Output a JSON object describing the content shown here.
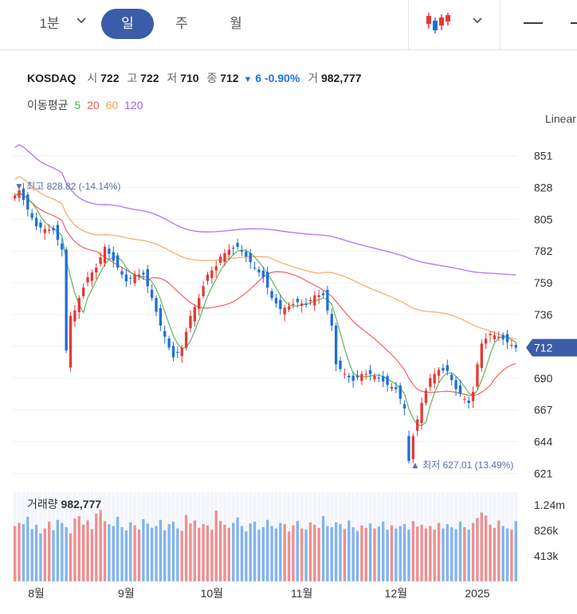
{
  "toolbar": {
    "timeframes": [
      "1분",
      "일",
      "주",
      "월"
    ],
    "active": "일",
    "colors": {
      "active_bg": "#3b5ca8"
    }
  },
  "header": {
    "symbol": "KOSDAQ",
    "open_label": "시",
    "open": "722",
    "high_label": "고",
    "high": "722",
    "low_label": "저",
    "low": "710",
    "close_label": "종",
    "close": "712",
    "change_arrow": "▼",
    "change": "6",
    "change_pct": "-0.90%",
    "volume_label": "거",
    "volume": "982,777"
  },
  "ma_legend": {
    "label": "이동평균",
    "items": [
      {
        "name": "5",
        "color": "#4caf50"
      },
      {
        "name": "20",
        "color": "#ef5350"
      },
      {
        "name": "60",
        "color": "#f5a15c"
      },
      {
        "name": "120",
        "color": "#a259ff"
      }
    ]
  },
  "scale_mode": "Linear",
  "chart_data": {
    "type": "candlestick",
    "ylim": [
      612,
      860
    ],
    "y_ticks": [
      851,
      828,
      805,
      782,
      759,
      736,
      713,
      690,
      667,
      644,
      621
    ],
    "y_tick_labels": [
      "851",
      "828",
      "805",
      "782",
      "759",
      "736",
      "",
      "690",
      "667",
      "644",
      "621"
    ],
    "current_price_label": "712",
    "current_price": 712,
    "x_labels": [
      "8월",
      "9월",
      "10월",
      "11월",
      "12월",
      "2025"
    ],
    "x_label_positions": [
      5,
      26,
      46,
      67,
      89,
      108
    ],
    "n_bars": 118,
    "high_marker": {
      "text": "▼ 최고 828.82 (-14.14%)",
      "value": 828.82,
      "bar_index": 1
    },
    "low_marker": {
      "text": "▲ 최저 627.01 (13.49%)",
      "value": 627.01,
      "bar_index": 92
    },
    "close_anchors": [
      [
        0,
        822
      ],
      [
        1,
        826
      ],
      [
        3,
        812
      ],
      [
        5,
        800
      ],
      [
        7,
        798
      ],
      [
        9,
        797
      ],
      [
        10,
        790
      ],
      [
        11,
        783
      ],
      [
        12,
        695
      ],
      [
        13,
        735
      ],
      [
        14,
        739
      ],
      [
        15,
        748
      ],
      [
        17,
        763
      ],
      [
        19,
        770
      ],
      [
        21,
        785
      ],
      [
        24,
        770
      ],
      [
        26,
        760
      ],
      [
        28,
        765
      ],
      [
        30,
        765
      ],
      [
        32,
        748
      ],
      [
        34,
        728
      ],
      [
        36,
        712
      ],
      [
        37,
        705
      ],
      [
        39,
        712
      ],
      [
        41,
        735
      ],
      [
        43,
        748
      ],
      [
        45,
        765
      ],
      [
        47,
        771
      ],
      [
        48,
        778
      ],
      [
        50,
        783
      ],
      [
        52,
        785
      ],
      [
        54,
        778
      ],
      [
        56,
        770
      ],
      [
        58,
        763
      ],
      [
        60,
        748
      ],
      [
        62,
        740
      ],
      [
        64,
        742
      ],
      [
        66,
        745
      ],
      [
        68,
        743
      ],
      [
        70,
        750
      ],
      [
        72,
        750
      ],
      [
        74,
        728
      ],
      [
        75,
        700
      ],
      [
        77,
        693
      ],
      [
        79,
        688
      ],
      [
        81,
        693
      ],
      [
        83,
        693
      ],
      [
        85,
        690
      ],
      [
        87,
        685
      ],
      [
        89,
        682
      ],
      [
        91,
        668
      ],
      [
        92,
        630
      ],
      [
        93,
        648
      ],
      [
        95,
        672
      ],
      [
        97,
        690
      ],
      [
        99,
        696
      ],
      [
        101,
        695
      ],
      [
        103,
        682
      ],
      [
        105,
        675
      ],
      [
        106,
        672
      ],
      [
        107,
        680
      ],
      [
        108,
        700
      ],
      [
        109,
        715
      ],
      [
        111,
        722
      ],
      [
        113,
        720
      ],
      [
        115,
        716
      ],
      [
        117,
        712
      ]
    ],
    "volume": {
      "label": "거래량",
      "value": "982,777",
      "ylim": [
        0,
        1.45
      ],
      "y_ticks": [
        1.24,
        0.826,
        0.413
      ],
      "y_tick_labels": [
        "1.24m",
        "826k",
        "413k"
      ],
      "levels": [
        0.9,
        0.95,
        0.93,
        1.05,
        0.85,
        0.92,
        0.78,
        0.86,
        0.97,
        0.83,
        1.0,
        0.95,
        0.88,
        0.78,
        1.02,
        1.06,
        0.92,
        0.99,
        0.85,
        1.1,
        1.16,
        0.98,
        0.93,
        0.9,
        1.05,
        0.88,
        0.83,
        0.96,
        0.91,
        0.84,
        1.01,
        0.94,
        0.87,
        0.9,
        1.0,
        0.83,
        0.93,
        0.97,
        0.86,
        0.82,
        1.08,
        0.94,
        0.99,
        0.87,
        0.93,
        0.91,
        0.84,
        1.15,
        0.98,
        0.92,
        0.87,
        0.95,
        1.04,
        0.9,
        0.81,
        0.94,
        0.97,
        0.84,
        0.88,
        1.0,
        0.9,
        0.86,
        0.95,
        0.93,
        0.81,
        0.91,
        0.98,
        0.86,
        0.84,
        0.96,
        0.92,
        0.87,
        1.06,
        0.9,
        0.88,
        0.96,
        0.93,
        0.85,
        0.99,
        0.88,
        0.82,
        0.91,
        0.87,
        0.94,
        0.86,
        0.89,
        0.97,
        0.84,
        0.91,
        0.86,
        0.9,
        0.93,
        0.84,
        0.98,
        0.89,
        0.92,
        0.86,
        0.9,
        0.84,
        0.95,
        0.86,
        0.93,
        0.88,
        0.85,
        0.97,
        0.88,
        0.84,
        0.95,
        1.03,
        1.12,
        1.07,
        0.92,
        0.87,
        0.99,
        0.9,
        0.86,
        0.84,
        0.98
      ]
    },
    "colors": {
      "up": "#e53935",
      "down": "#1e6fd9",
      "ma5": "#4caf50",
      "ma20": "#ef5350",
      "ma60": "#f5a15c",
      "ma120": "#a259ff",
      "price_tag": "#3b5ca8"
    }
  }
}
